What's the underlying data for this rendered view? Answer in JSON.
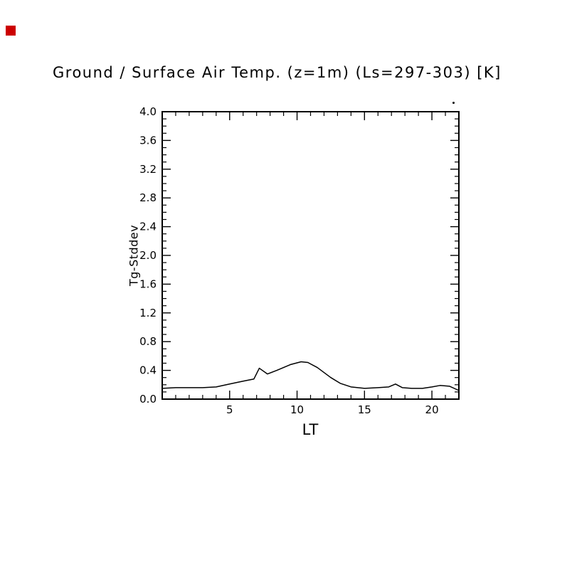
{
  "window": {
    "background": "#ffffff"
  },
  "decorations": {
    "red_square_color": "#cc0000"
  },
  "chart_data": {
    "type": "line",
    "title": "Ground / Surface Air Temp. (z=1m) (Ls=297-303) [K]",
    "xlabel": "LT",
    "ylabel": "Tg-Stddev",
    "xlim": [
      0,
      22
    ],
    "ylim": [
      0.0,
      4.0
    ],
    "grid": false,
    "x_major_ticks": [
      5,
      10,
      15,
      20
    ],
    "x_tick_labels": [
      "5",
      "10",
      "15",
      "20"
    ],
    "x_minor_interval": 1,
    "y_major_ticks": [
      0.0,
      0.4,
      0.8,
      1.2,
      1.6,
      2.0,
      2.4,
      2.8,
      3.2,
      3.6,
      4.0
    ],
    "y_tick_labels": [
      "0.0",
      "0.4",
      "0.8",
      "1.2",
      "1.6",
      "2.0",
      "2.4",
      "2.8",
      "3.2",
      "3.6",
      "4.0"
    ],
    "y_minor_interval": 0.1,
    "line_color": "#000000",
    "frame_color": "#000000",
    "series": [
      {
        "name": "Tg-Stddev",
        "x": [
          0,
          1,
          2,
          3,
          4,
          5,
          6,
          6.8,
          7.2,
          7.8,
          8.5,
          9.5,
          10.3,
          10.8,
          11.5,
          12.5,
          13.2,
          14,
          15,
          16,
          16.8,
          17.3,
          17.8,
          18.5,
          19.3,
          20,
          20.6,
          21.3,
          22
        ],
        "y": [
          0.15,
          0.16,
          0.16,
          0.16,
          0.17,
          0.21,
          0.25,
          0.28,
          0.43,
          0.35,
          0.4,
          0.48,
          0.52,
          0.51,
          0.44,
          0.3,
          0.22,
          0.17,
          0.15,
          0.16,
          0.17,
          0.21,
          0.16,
          0.15,
          0.15,
          0.17,
          0.19,
          0.18,
          0.12
        ]
      }
    ]
  }
}
